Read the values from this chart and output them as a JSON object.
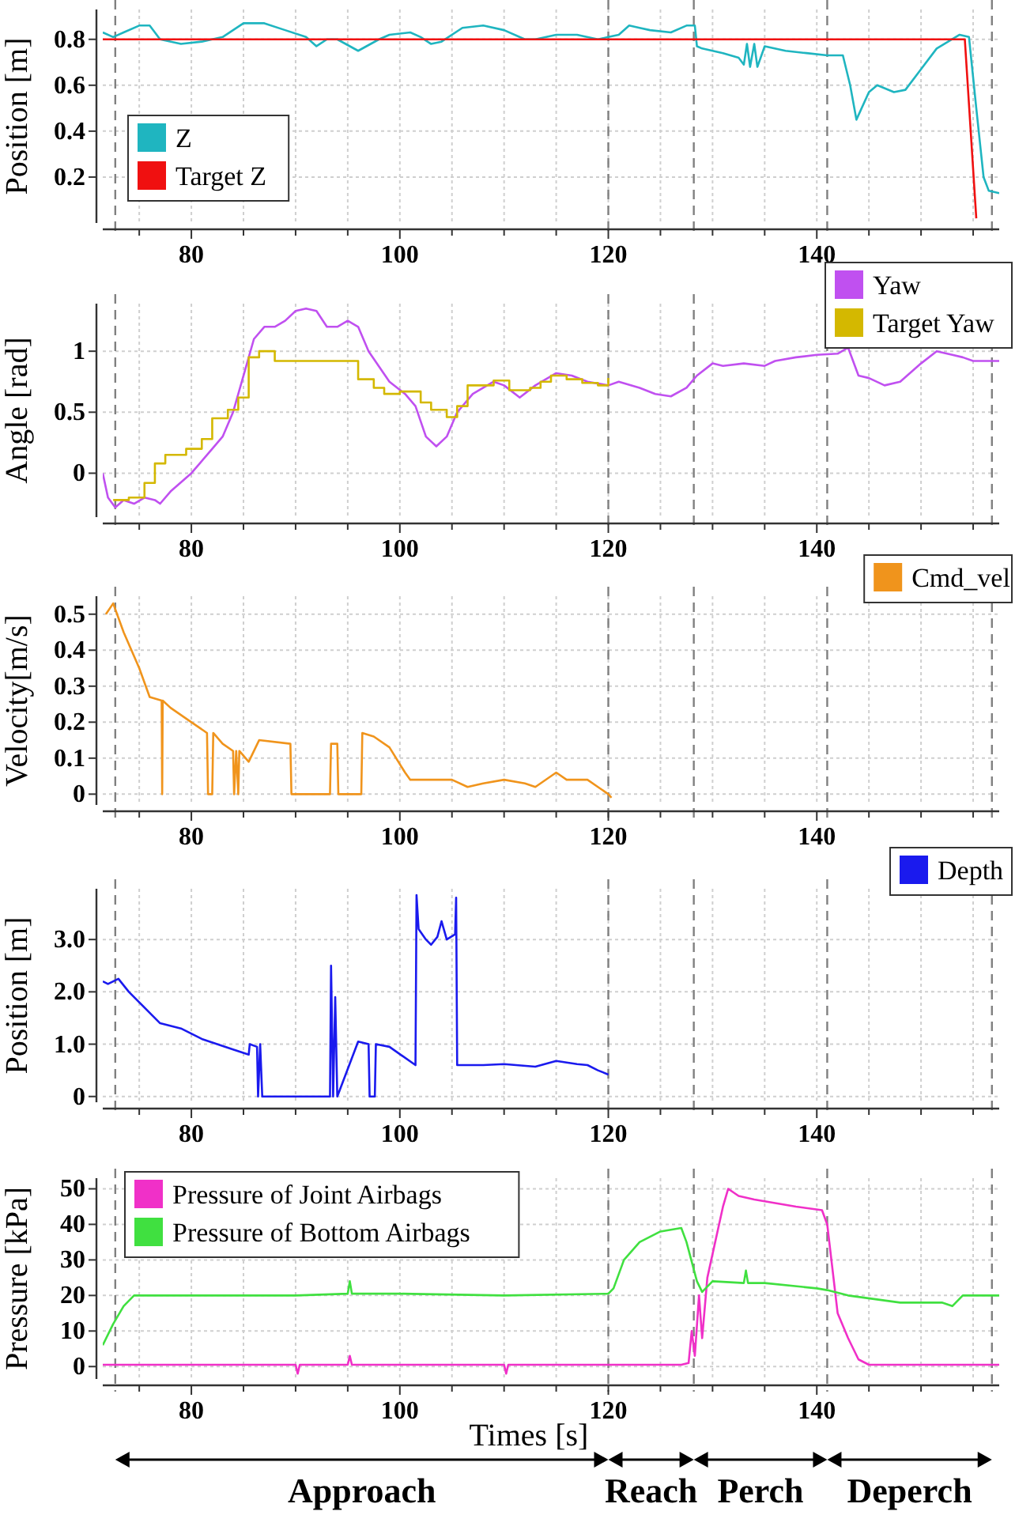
{
  "chart_data": [
    {
      "type": "line",
      "ylabel": "Position [m]",
      "xlim": [
        71.5,
        157.5
      ],
      "xticks": [
        {
          "value": 75,
          "label": null
        },
        80,
        {
          "value": 85,
          "label": null
        },
        {
          "value": 90,
          "label": null
        },
        {
          "value": 95,
          "label": null
        },
        100,
        {
          "value": 105,
          "label": null
        },
        {
          "value": 110,
          "label": null
        },
        {
          "value": 115,
          "label": null
        },
        120,
        {
          "value": 125,
          "label": null
        },
        {
          "value": 130,
          "label": null
        },
        {
          "value": 135,
          "label": null
        },
        140,
        {
          "value": 145,
          "label": null
        },
        {
          "value": 150,
          "label": null
        },
        {
          "value": 155,
          "label": null
        }
      ],
      "ylim": [
        0,
        0.93
      ],
      "yticks": [
        0.2,
        0.4,
        0.6,
        0.8
      ],
      "grid": true,
      "legend": "bottom left",
      "line_style": "solid",
      "marker": "none",
      "ref_lines": [
        {
          "axis": "x",
          "value": 72.7,
          "color": "#808080",
          "line_style": "dashed"
        },
        {
          "axis": "x",
          "value": 120,
          "color": "#808080",
          "line_style": "dashed"
        },
        {
          "axis": "x",
          "value": 128.2,
          "color": "#808080",
          "line_style": "dashed"
        },
        {
          "axis": "x",
          "value": 141,
          "color": "#808080",
          "line_style": "dashed"
        },
        {
          "axis": "x",
          "value": 156.8,
          "color": "#808080",
          "line_style": "dashed"
        }
      ],
      "series": [
        {
          "name": "Z",
          "color": "#1fb5c0",
          "x": [
            71.5,
            72.5,
            73.5,
            75,
            76,
            77,
            79,
            81,
            83,
            85,
            87,
            89,
            91,
            92,
            93,
            94,
            96,
            98,
            99,
            101,
            102,
            103,
            104,
            106,
            108,
            110,
            112,
            113,
            115,
            117,
            119,
            120,
            121,
            122,
            123,
            124,
            126,
            127.5,
            128.3,
            128.5,
            129,
            131,
            132.5,
            133,
            133.3,
            133.6,
            134,
            134.3,
            135,
            137,
            139,
            141,
            142.5,
            143.2,
            143.8,
            145,
            145.8,
            147.4,
            148.5,
            150,
            151.5,
            153.7,
            154.6,
            155.3,
            156,
            156.5,
            157.5
          ],
          "values": [
            0.83,
            0.81,
            0.83,
            0.86,
            0.86,
            0.8,
            0.78,
            0.79,
            0.81,
            0.87,
            0.87,
            0.84,
            0.81,
            0.77,
            0.8,
            0.8,
            0.75,
            0.8,
            0.82,
            0.83,
            0.81,
            0.78,
            0.79,
            0.85,
            0.86,
            0.84,
            0.8,
            0.8,
            0.82,
            0.82,
            0.8,
            0.81,
            0.82,
            0.86,
            0.85,
            0.84,
            0.83,
            0.86,
            0.86,
            0.77,
            0.76,
            0.74,
            0.72,
            0.69,
            0.78,
            0.68,
            0.78,
            0.68,
            0.77,
            0.75,
            0.74,
            0.73,
            0.73,
            0.6,
            0.45,
            0.57,
            0.6,
            0.57,
            0.58,
            0.67,
            0.76,
            0.82,
            0.81,
            0.5,
            0.2,
            0.14,
            0.13
          ]
        },
        {
          "name": "Target Z",
          "color": "#f01010",
          "x": [
            71.5,
            154.2,
            155.3
          ],
          "values": [
            0.8,
            0.8,
            0.02
          ]
        }
      ]
    },
    {
      "type": "line",
      "ylabel": "Angle [rad]",
      "xlim": [
        71.5,
        157.5
      ],
      "xticks": [
        {
          "value": 75,
          "label": null
        },
        80,
        {
          "value": 85,
          "label": null
        },
        {
          "value": 90,
          "label": null
        },
        {
          "value": 95,
          "label": null
        },
        100,
        {
          "value": 105,
          "label": null
        },
        {
          "value": 110,
          "label": null
        },
        {
          "value": 115,
          "label": null
        },
        120,
        {
          "value": 125,
          "label": null
        },
        {
          "value": 130,
          "label": null
        },
        {
          "value": 135,
          "label": null
        },
        140,
        {
          "value": 145,
          "label": null
        },
        {
          "value": 150,
          "label": null
        },
        {
          "value": 155,
          "label": null
        }
      ],
      "ylim": [
        -0.36,
        1.39
      ],
      "yticks": [
        0,
        0.5,
        1
      ],
      "grid": true,
      "legend": "top right",
      "line_style": "solid",
      "marker": "none",
      "ref_lines": [
        {
          "axis": "x",
          "value": 72.7,
          "color": "#808080",
          "line_style": "dashed"
        },
        {
          "axis": "x",
          "value": 120,
          "color": "#808080",
          "line_style": "dashed"
        },
        {
          "axis": "x",
          "value": 128.2,
          "color": "#808080",
          "line_style": "dashed"
        },
        {
          "axis": "x",
          "value": 141,
          "color": "#808080",
          "line_style": "dashed"
        },
        {
          "axis": "x",
          "value": 156.8,
          "color": "#808080",
          "line_style": "dashed"
        }
      ],
      "series": [
        {
          "name": "Yaw",
          "color": "#c050f0",
          "x": [
            71.5,
            72,
            72.7,
            73.5,
            74.5,
            75.5,
            76.5,
            77,
            78,
            80,
            82,
            83,
            84,
            85,
            86,
            87,
            88,
            89,
            90,
            91,
            92,
            93,
            94,
            95,
            96,
            97,
            99,
            100.5,
            101.5,
            102.5,
            103.5,
            104.5,
            105.5,
            107,
            109,
            110,
            111.5,
            113,
            115,
            116.5,
            118,
            120,
            121,
            123,
            124.5,
            126,
            127.5,
            128.5,
            130,
            131,
            133,
            135,
            136,
            138,
            140,
            142,
            143,
            144,
            145,
            146.5,
            148,
            150,
            151.5,
            153,
            154,
            155,
            156,
            157.5
          ],
          "values": [
            0,
            -0.2,
            -0.28,
            -0.22,
            -0.25,
            -0.2,
            -0.22,
            -0.25,
            -0.15,
            0,
            0.2,
            0.3,
            0.5,
            0.8,
            1.1,
            1.2,
            1.2,
            1.25,
            1.33,
            1.35,
            1.33,
            1.2,
            1.2,
            1.25,
            1.2,
            1,
            0.75,
            0.65,
            0.55,
            0.3,
            0.22,
            0.3,
            0.5,
            0.65,
            0.75,
            0.72,
            0.62,
            0.72,
            0.82,
            0.8,
            0.75,
            0.72,
            0.75,
            0.7,
            0.65,
            0.63,
            0.7,
            0.8,
            0.9,
            0.88,
            0.9,
            0.88,
            0.92,
            0.95,
            0.97,
            0.98,
            1.03,
            0.8,
            0.78,
            0.72,
            0.75,
            0.9,
            1,
            0.97,
            0.95,
            0.92,
            0.92,
            0.92
          ]
        },
        {
          "name": "Target Yaw",
          "type": "step",
          "color": "#d4b800",
          "x": [
            72.5,
            74,
            75.5,
            76.5,
            77.5,
            79.5,
            81,
            82,
            83.5,
            84.5,
            85.5,
            86.5,
            88,
            96,
            97.5,
            98.5,
            100,
            102,
            103,
            104.5,
            105.5,
            106.5,
            108,
            109,
            110.5,
            112.5,
            113.5,
            114.5,
            116,
            117.5,
            119,
            120
          ],
          "values": [
            -0.22,
            -0.2,
            -0.08,
            0.08,
            0.15,
            0.2,
            0.28,
            0.45,
            0.52,
            0.62,
            0.95,
            1,
            0.92,
            0.77,
            0.7,
            0.65,
            0.67,
            0.58,
            0.52,
            0.46,
            0.55,
            0.72,
            0.72,
            0.76,
            0.68,
            0.7,
            0.75,
            0.8,
            0.77,
            0.74,
            0.72,
            0.78
          ]
        }
      ]
    },
    {
      "type": "line",
      "ylabel": "Velocity[m/s]",
      "xlim": [
        71.5,
        157.5
      ],
      "xticks": [
        {
          "value": 75,
          "label": null
        },
        80,
        {
          "value": 85,
          "label": null
        },
        {
          "value": 90,
          "label": null
        },
        {
          "value": 95,
          "label": null
        },
        100,
        {
          "value": 105,
          "label": null
        },
        {
          "value": 110,
          "label": null
        },
        {
          "value": 115,
          "label": null
        },
        120,
        {
          "value": 125,
          "label": null
        },
        {
          "value": 130,
          "label": null
        },
        {
          "value": 135,
          "label": null
        },
        140,
        {
          "value": 145,
          "label": null
        },
        {
          "value": 150,
          "label": null
        },
        {
          "value": 155,
          "label": null
        }
      ],
      "ylim": [
        -0.03,
        0.55
      ],
      "yticks": [
        0,
        0.1,
        0.2,
        0.3,
        0.4,
        0.5
      ],
      "grid": true,
      "legend": "top right",
      "line_style": "solid",
      "marker": "none",
      "ref_lines": [
        {
          "axis": "x",
          "value": 72.7,
          "color": "#808080",
          "line_style": "dashed"
        },
        {
          "axis": "x",
          "value": 120,
          "color": "#808080",
          "line_style": "dashed"
        },
        {
          "axis": "x",
          "value": 128.2,
          "color": "#808080",
          "line_style": "dashed"
        },
        {
          "axis": "x",
          "value": 141,
          "color": "#808080",
          "line_style": "dashed"
        },
        {
          "axis": "x",
          "value": 156.8,
          "color": "#808080",
          "line_style": "dashed"
        }
      ],
      "series": [
        {
          "name": "Cmd_vel",
          "color": "#f0941c",
          "x": [
            71.8,
            72.5,
            73.5,
            75,
            76,
            77.15,
            77.2,
            77.25,
            78,
            80,
            81.5,
            81.6,
            82,
            82.1,
            83,
            84,
            84.1,
            84.3,
            84.5,
            84.6,
            85.5,
            86.5,
            89.5,
            89.6,
            93.3,
            93.4,
            94,
            94.1,
            96.3,
            96.4,
            97.5,
            99,
            100.5,
            101,
            105,
            106.5,
            108,
            110,
            112,
            113,
            115,
            116,
            118,
            119,
            120,
            120.3
          ],
          "values": [
            0.5,
            0.53,
            0.45,
            0.35,
            0.27,
            0.26,
            0,
            0.26,
            0.24,
            0.2,
            0.17,
            0,
            0,
            0.17,
            0.14,
            0.12,
            0,
            0.12,
            0,
            0.12,
            0.09,
            0.15,
            0.14,
            0,
            0,
            0.14,
            0.14,
            0,
            0,
            0.17,
            0.16,
            0.13,
            0.06,
            0.04,
            0.04,
            0.02,
            0.03,
            0.04,
            0.03,
            0.02,
            0.06,
            0.04,
            0.04,
            0.02,
            0,
            -0.01
          ]
        }
      ]
    },
    {
      "type": "line",
      "ylabel": "Position [m]",
      "xlim": [
        71.5,
        157.5
      ],
      "xticks": [
        {
          "value": 75,
          "label": null
        },
        80,
        {
          "value": 85,
          "label": null
        },
        {
          "value": 90,
          "label": null
        },
        {
          "value": 95,
          "label": null
        },
        100,
        {
          "value": 105,
          "label": null
        },
        {
          "value": 110,
          "label": null
        },
        {
          "value": 115,
          "label": null
        },
        120,
        {
          "value": 125,
          "label": null
        },
        {
          "value": 130,
          "label": null
        },
        {
          "value": 135,
          "label": null
        },
        140,
        {
          "value": 145,
          "label": null
        },
        {
          "value": 150,
          "label": null
        },
        {
          "value": 155,
          "label": null
        }
      ],
      "ylim": [
        -0.11,
        3.97
      ],
      "yticks": [
        0,
        {
          "value": 1,
          "label": "1.0"
        },
        {
          "value": 2,
          "label": "2.0"
        },
        {
          "value": 3,
          "label": "3.0"
        }
      ],
      "grid": true,
      "legend": "top right",
      "line_style": "solid",
      "marker": "none",
      "ref_lines": [
        {
          "axis": "x",
          "value": 72.7,
          "color": "#808080",
          "line_style": "dashed"
        },
        {
          "axis": "x",
          "value": 120,
          "color": "#808080",
          "line_style": "dashed"
        },
        {
          "axis": "x",
          "value": 128.2,
          "color": "#808080",
          "line_style": "dashed"
        },
        {
          "axis": "x",
          "value": 141,
          "color": "#808080",
          "line_style": "dashed"
        },
        {
          "axis": "x",
          "value": 156.8,
          "color": "#808080",
          "line_style": "dashed"
        }
      ],
      "series": [
        {
          "name": "Depth",
          "color": "#1a1aee",
          "x": [
            71.5,
            72,
            73,
            74,
            76,
            77,
            79,
            81,
            84,
            85.5,
            85.6,
            86.3,
            86.4,
            86.6,
            86.8,
            93.3,
            93.4,
            93.6,
            93.8,
            94,
            96,
            97,
            97.1,
            97.6,
            97.7,
            99,
            101.5,
            101.6,
            101.8,
            102.5,
            103,
            103.6,
            104,
            104.5,
            105.3,
            105.4,
            105.5,
            108,
            110,
            113,
            115,
            117,
            118,
            119,
            120
          ],
          "values": [
            2.2,
            2.15,
            2.25,
            2,
            1.6,
            1.4,
            1.3,
            1.1,
            0.9,
            0.8,
            1,
            0.95,
            0,
            1,
            0,
            0,
            2.5,
            0,
            1.9,
            0,
            1.05,
            1,
            0,
            0,
            1,
            0.95,
            0.6,
            3.85,
            3.2,
            3,
            2.9,
            3.05,
            3.35,
            3,
            3.1,
            3.8,
            0.6,
            0.6,
            0.62,
            0.57,
            0.68,
            0.62,
            0.6,
            0.5,
            0.42
          ]
        }
      ]
    },
    {
      "type": "line",
      "ylabel": "Pressure [kPa]",
      "xlabel": "Times [s]",
      "xlim": [
        71.5,
        157.5
      ],
      "xticks": [
        {
          "value": 75,
          "label": null
        },
        80,
        {
          "value": 85,
          "label": null
        },
        {
          "value": 90,
          "label": null
        },
        {
          "value": 95,
          "label": null
        },
        100,
        {
          "value": 105,
          "label": null
        },
        {
          "value": 110,
          "label": null
        },
        {
          "value": 115,
          "label": null
        },
        120,
        {
          "value": 125,
          "label": null
        },
        {
          "value": 130,
          "label": null
        },
        {
          "value": 135,
          "label": null
        },
        140,
        {
          "value": 145,
          "label": null
        },
        {
          "value": 150,
          "label": null
        },
        {
          "value": 155,
          "label": null
        }
      ],
      "ylim": [
        -3.5,
        53
      ],
      "yticks": [
        0,
        10,
        20,
        30,
        40,
        50
      ],
      "grid": true,
      "legend": "top left",
      "line_style": "solid",
      "marker": "none",
      "ref_lines": [
        {
          "axis": "x",
          "value": 72.7,
          "color": "#808080",
          "line_style": "dashed"
        },
        {
          "axis": "x",
          "value": 120,
          "color": "#808080",
          "line_style": "dashed"
        },
        {
          "axis": "x",
          "value": 128.2,
          "color": "#808080",
          "line_style": "dashed"
        },
        {
          "axis": "x",
          "value": 141,
          "color": "#808080",
          "line_style": "dashed"
        },
        {
          "axis": "x",
          "value": 156.8,
          "color": "#808080",
          "line_style": "dashed"
        }
      ],
      "annotations": [
        "Approach",
        "Reach",
        "Perch",
        "Deperch"
      ],
      "series": [
        {
          "name": "Pressure of Joint Airbags",
          "color": "#f030c8",
          "x": [
            71.5,
            80,
            90,
            90.2,
            90.4,
            95,
            95.2,
            95.4,
            110,
            110.2,
            110.4,
            127,
            127.7,
            128,
            128.3,
            128.7,
            129,
            129.5,
            131,
            131.5,
            132.5,
            134,
            136,
            138,
            140.5,
            141,
            142,
            143,
            144,
            145,
            150,
            157.5
          ],
          "values": [
            0.5,
            0.5,
            0.5,
            -2,
            0.5,
            0.5,
            3,
            0.5,
            0.5,
            -2,
            0.5,
            0.5,
            1,
            10,
            3,
            20,
            8,
            25,
            45,
            50,
            48,
            47,
            46,
            45,
            44,
            40,
            15,
            8,
            2,
            0.5,
            0.5,
            0.5
          ]
        },
        {
          "name": "Pressure of Bottom Airbags",
          "color": "#40e040",
          "x": [
            71.5,
            72.5,
            73.5,
            74.5,
            80,
            90,
            95,
            95.2,
            95.4,
            100,
            110,
            120,
            120.5,
            121.5,
            123,
            125,
            127,
            127.5,
            128.5,
            129,
            130,
            133,
            133.2,
            133.4,
            135,
            140,
            141,
            143,
            148,
            152,
            153,
            154,
            157.5
          ],
          "values": [
            6,
            12,
            17,
            20,
            20,
            20,
            20.5,
            24,
            20.5,
            20.5,
            20,
            20.5,
            22,
            30,
            35,
            38,
            39,
            35,
            24,
            21,
            24,
            23.5,
            27,
            23.5,
            23.5,
            22,
            21.5,
            20,
            18,
            18,
            17,
            20,
            20
          ]
        }
      ]
    }
  ]
}
